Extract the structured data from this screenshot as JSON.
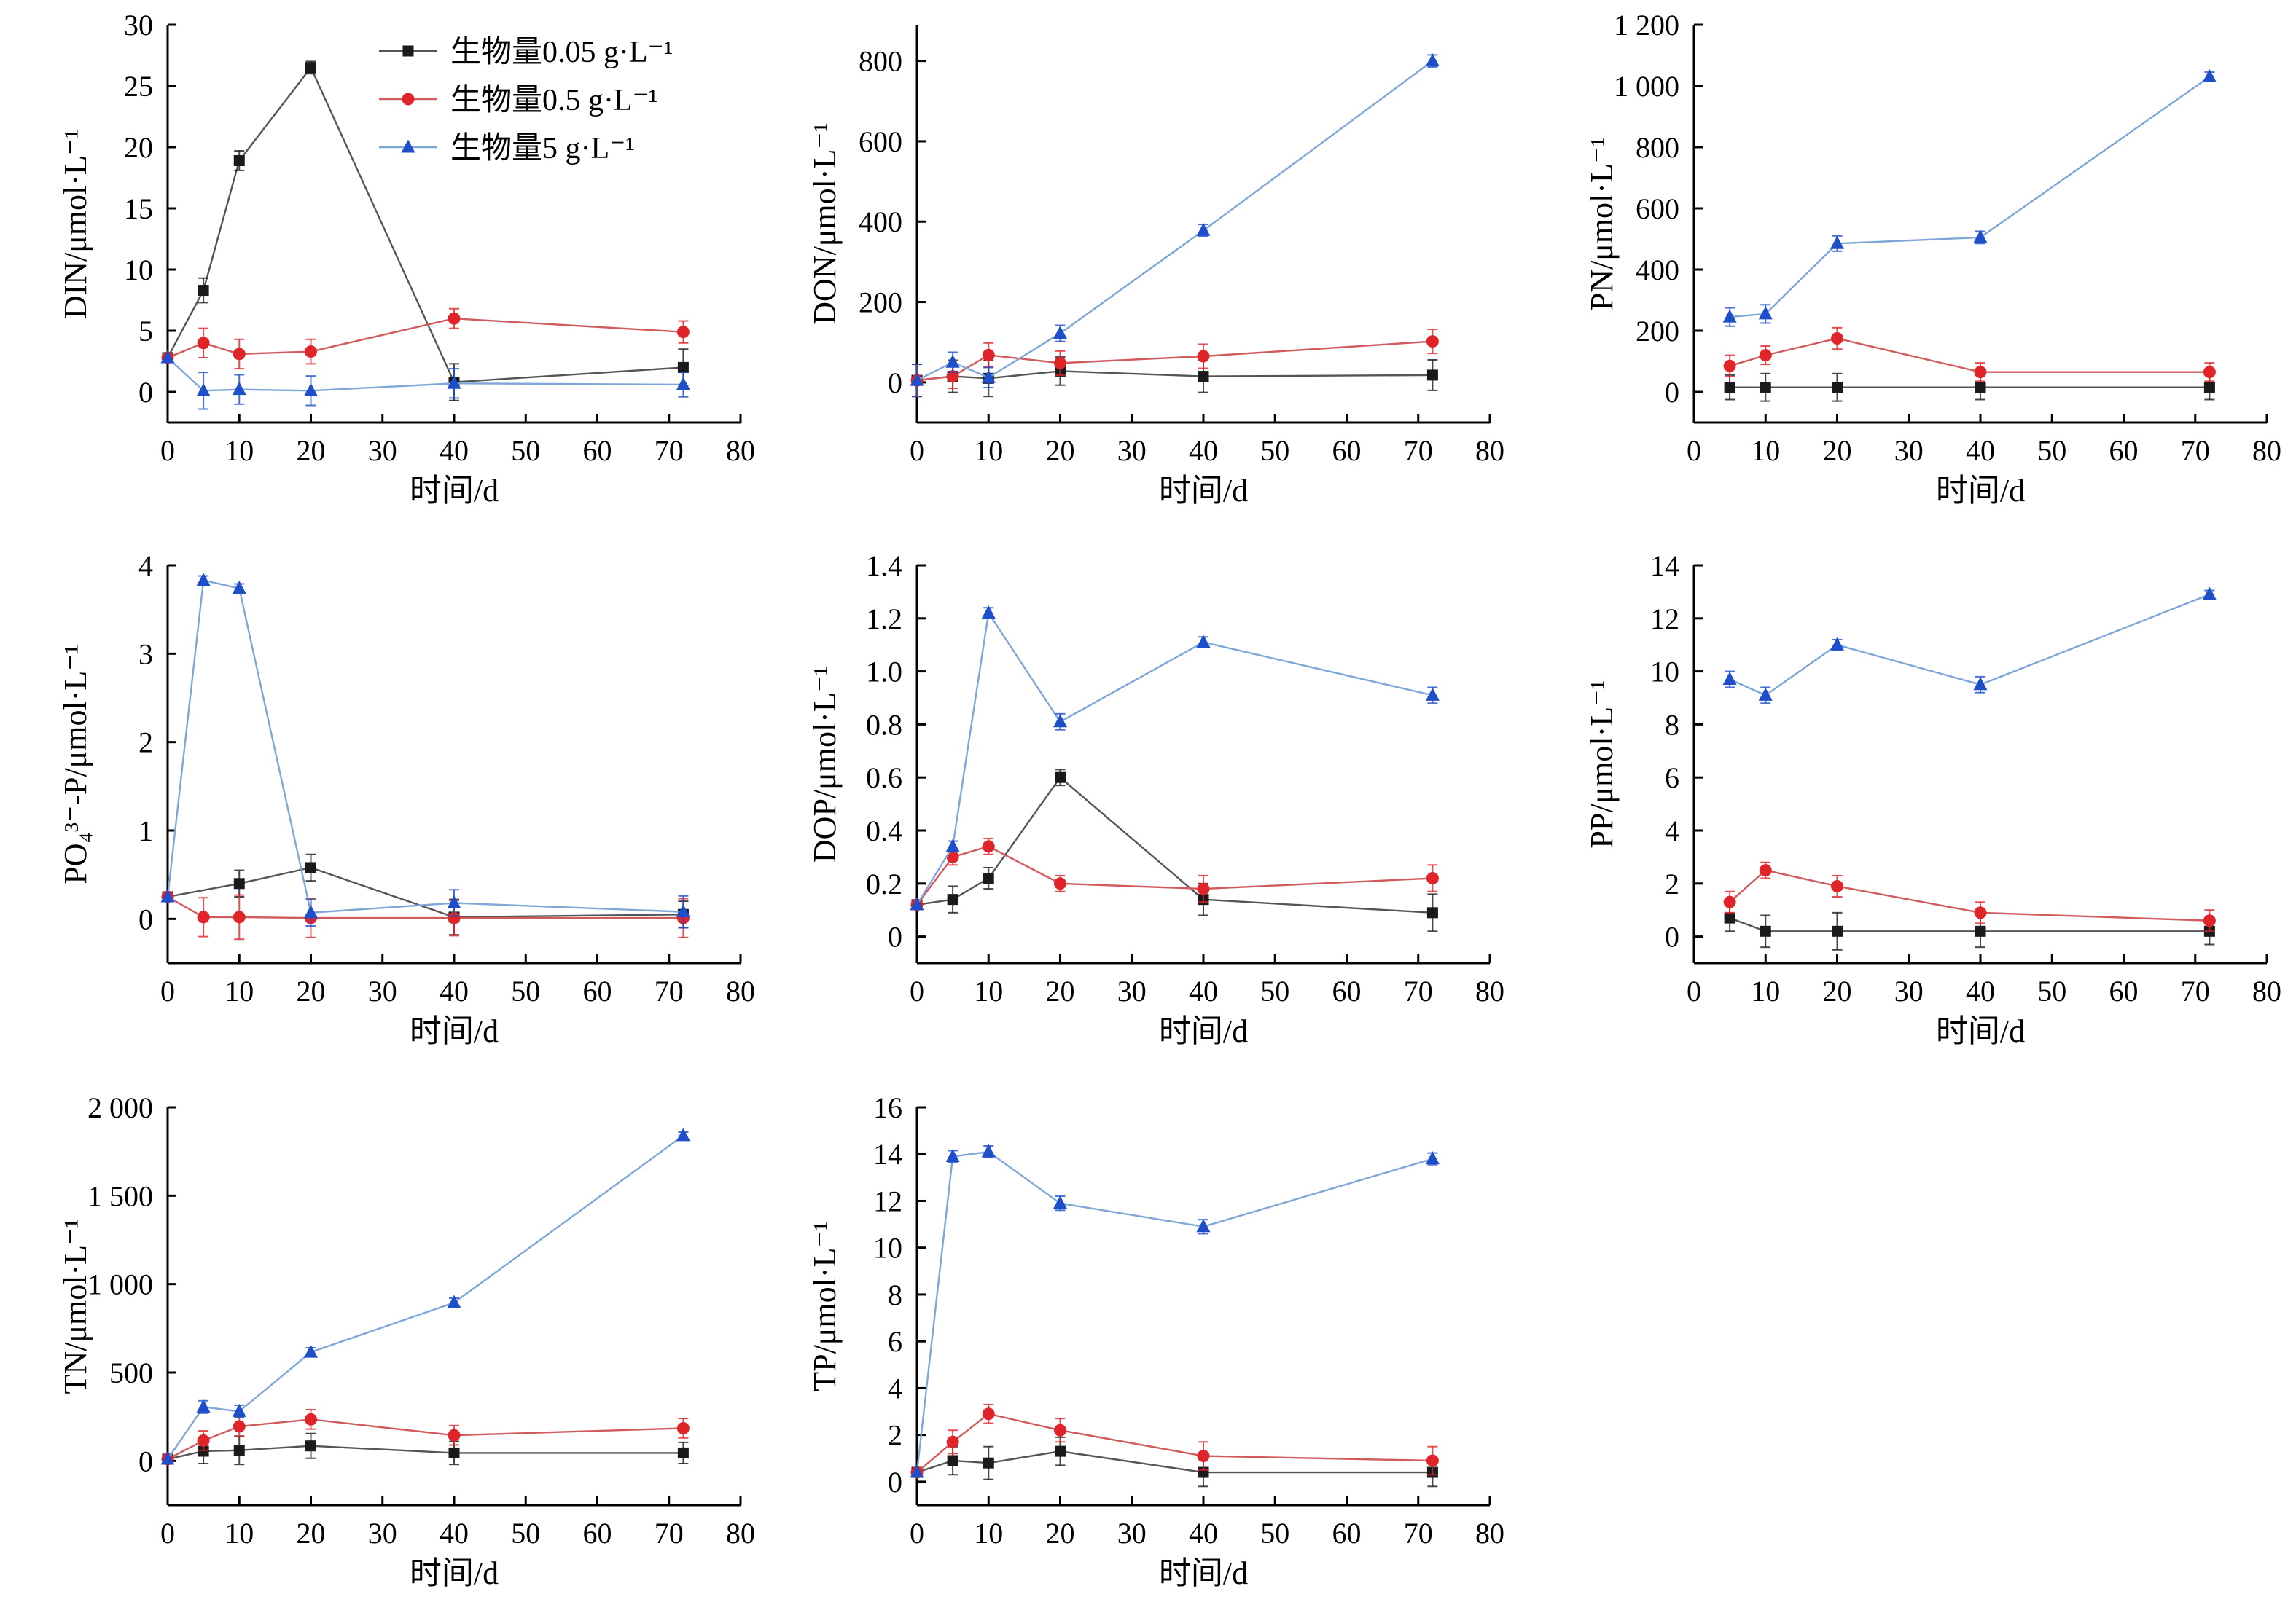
{
  "legend": {
    "items": [
      {
        "label": "生物量0.05 g·L⁻¹",
        "color": "#1a1a1a",
        "marker": "square"
      },
      {
        "label": "生物量0.5 g·L⁻¹",
        "color": "#e0252a",
        "marker": "circle"
      },
      {
        "label": "生物量5 g·L⁻¹",
        "color": "#1f4fc8",
        "marker": "triangle"
      }
    ]
  },
  "chart_data": [
    {
      "type": "line",
      "xlabel": "时间/d",
      "ylabel": "DIN/μmol·L⁻¹",
      "xlim": [
        0,
        80
      ],
      "ylim": [
        -2.5,
        30
      ],
      "xticks": [
        "0",
        "10",
        "20",
        "30",
        "40",
        "50",
        "60",
        "70",
        "80"
      ],
      "yticks": [
        {
          "v": 0,
          "t": "0"
        },
        {
          "v": 5,
          "t": "5"
        },
        {
          "v": 10,
          "t": "10"
        },
        {
          "v": 15,
          "t": "15"
        },
        {
          "v": 20,
          "t": "20"
        },
        {
          "v": 25,
          "t": "25"
        },
        {
          "v": 30,
          "t": "30"
        }
      ],
      "series": [
        {
          "name": "生物量0.05 g·L⁻¹",
          "x": [
            0,
            5,
            10,
            20,
            40,
            72
          ],
          "y": [
            2.8,
            8.3,
            18.9,
            26.5,
            0.8,
            2.0
          ],
          "err": [
            0,
            1,
            0.8,
            0.5,
            1.5,
            1.5
          ]
        },
        {
          "name": "生物量0.5 g·L⁻¹",
          "x": [
            0,
            5,
            10,
            20,
            40,
            72
          ],
          "y": [
            2.8,
            4.0,
            3.1,
            3.3,
            6.0,
            4.9
          ],
          "err": [
            0,
            1.2,
            1.2,
            1.0,
            0.8,
            0.9
          ]
        },
        {
          "name": "生物量5 g·L⁻¹",
          "x": [
            0,
            5,
            10,
            20,
            40,
            72
          ],
          "y": [
            2.8,
            0.1,
            0.2,
            0.1,
            0.7,
            0.6
          ],
          "err": [
            0,
            1.5,
            1.2,
            1.2,
            1.2,
            1.0
          ]
        }
      ]
    },
    {
      "type": "line",
      "xlabel": "时间/d",
      "ylabel": "DON/μmol·L⁻¹",
      "xlim": [
        0,
        80
      ],
      "ylim": [
        -100,
        890
      ],
      "xticks": [
        "0",
        "10",
        "20",
        "30",
        "40",
        "50",
        "60",
        "70",
        "80"
      ],
      "yticks": [
        {
          "v": 0,
          "t": "0"
        },
        {
          "v": 200,
          "t": "200"
        },
        {
          "v": 400,
          "t": "400"
        },
        {
          "v": 600,
          "t": "600"
        },
        {
          "v": 800,
          "t": "800"
        }
      ],
      "series": [
        {
          "name": "生物量0.05 g·L⁻¹",
          "x": [
            0,
            5,
            10,
            20,
            40,
            72
          ],
          "y": [
            5,
            15,
            10,
            28,
            15,
            18
          ],
          "err": [
            40,
            40,
            45,
            35,
            40,
            38
          ]
        },
        {
          "name": "生物量0.5 g·L⁻¹",
          "x": [
            0,
            5,
            10,
            20,
            40,
            72
          ],
          "y": [
            5,
            15,
            68,
            48,
            65,
            102
          ],
          "err": [
            40,
            30,
            30,
            30,
            30,
            30
          ]
        },
        {
          "name": "生物量5 g·L⁻¹",
          "x": [
            0,
            5,
            10,
            20,
            40,
            72
          ],
          "y": [
            5,
            50,
            12,
            122,
            378,
            800
          ],
          "err": [
            40,
            25,
            25,
            20,
            15,
            15
          ]
        }
      ]
    },
    {
      "type": "line",
      "xlabel": "时间/d",
      "ylabel": "PN/μmol·L⁻¹",
      "xlim": [
        0,
        80
      ],
      "ylim": [
        -100,
        1200
      ],
      "xticks": [
        "0",
        "10",
        "20",
        "30",
        "40",
        "50",
        "60",
        "70",
        "80"
      ],
      "yticks": [
        {
          "v": 0,
          "t": "0"
        },
        {
          "v": 200,
          "t": "200"
        },
        {
          "v": 400,
          "t": "400"
        },
        {
          "v": 600,
          "t": "600"
        },
        {
          "v": 800,
          "t": "800"
        },
        {
          "v": 1000,
          "t": "1 000"
        },
        {
          "v": 1200,
          "t": "1 200"
        }
      ],
      "series": [
        {
          "name": "生物量0.05 g·L⁻¹",
          "x": [
            5,
            10,
            20,
            40,
            72
          ],
          "y": [
            15,
            15,
            15,
            15,
            15
          ],
          "err": [
            40,
            45,
            45,
            40,
            40
          ]
        },
        {
          "name": "生物量0.5 g·L⁻¹",
          "x": [
            5,
            10,
            20,
            40,
            72
          ],
          "y": [
            85,
            120,
            175,
            65,
            65
          ],
          "err": [
            35,
            30,
            35,
            30,
            30
          ]
        },
        {
          "name": "生物量5 g·L⁻¹",
          "x": [
            5,
            10,
            20,
            40,
            72
          ],
          "y": [
            245,
            255,
            485,
            505,
            1030
          ],
          "err": [
            30,
            30,
            25,
            20,
            15
          ]
        }
      ]
    },
    {
      "type": "line",
      "xlabel": "时间/d",
      "ylabel": "PO₄³⁻-P/μmol·L⁻¹",
      "xlim": [
        0,
        80
      ],
      "ylim": [
        -0.5,
        4
      ],
      "xticks": [
        "0",
        "10",
        "20",
        "30",
        "40",
        "50",
        "60",
        "70",
        "80"
      ],
      "yticks": [
        {
          "v": 0,
          "t": "0"
        },
        {
          "v": 1,
          "t": "1"
        },
        {
          "v": 2,
          "t": "2"
        },
        {
          "v": 3,
          "t": "3"
        },
        {
          "v": 4,
          "t": "4"
        }
      ],
      "series": [
        {
          "name": "生物量0.05 g·L⁻¹",
          "x": [
            0,
            10,
            20,
            40,
            72
          ],
          "y": [
            0.25,
            0.4,
            0.58,
            0.02,
            0.05
          ],
          "err": [
            0,
            0.15,
            0.15,
            0.2,
            0.15
          ]
        },
        {
          "name": "生物量0.5 g·L⁻¹",
          "x": [
            0,
            5,
            10,
            20,
            40,
            72
          ],
          "y": [
            0.25,
            0.02,
            0.02,
            0.01,
            0.01,
            0.01
          ],
          "err": [
            0,
            0.22,
            0.25,
            0.22,
            0.2,
            0.22
          ]
        },
        {
          "name": "生物量5 g·L⁻¹",
          "x": [
            0,
            5,
            10,
            20,
            40,
            72
          ],
          "y": [
            0.25,
            3.83,
            3.74,
            0.07,
            0.18,
            0.08
          ],
          "err": [
            0,
            0.05,
            0.05,
            0.15,
            0.15,
            0.18
          ]
        }
      ]
    },
    {
      "type": "line",
      "xlabel": "时间/d",
      "ylabel": "DOP/μmol·L⁻¹",
      "xlim": [
        0,
        80
      ],
      "ylim": [
        -0.1,
        1.4
      ],
      "xticks": [
        "0",
        "10",
        "20",
        "30",
        "40",
        "50",
        "60",
        "70",
        "80"
      ],
      "yticks": [
        {
          "v": 0,
          "t": "0"
        },
        {
          "v": 0.2,
          "t": "0.2"
        },
        {
          "v": 0.4,
          "t": "0.4"
        },
        {
          "v": 0.6,
          "t": "0.6"
        },
        {
          "v": 0.8,
          "t": "0.8"
        },
        {
          "v": 1.0,
          "t": "1.0"
        },
        {
          "v": 1.2,
          "t": "1.2"
        },
        {
          "v": 1.4,
          "t": "1.4"
        }
      ],
      "series": [
        {
          "name": "生物量0.05 g·L⁻¹",
          "x": [
            0,
            5,
            10,
            20,
            40,
            72
          ],
          "y": [
            0.12,
            0.14,
            0.22,
            0.6,
            0.14,
            0.09
          ],
          "err": [
            0,
            0.05,
            0.04,
            0.03,
            0.06,
            0.07
          ]
        },
        {
          "name": "生物量0.5 g·L⁻¹",
          "x": [
            0,
            5,
            10,
            20,
            40,
            72
          ],
          "y": [
            0.12,
            0.3,
            0.34,
            0.2,
            0.18,
            0.22
          ],
          "err": [
            0,
            0.03,
            0.03,
            0.03,
            0.05,
            0.05
          ]
        },
        {
          "name": "生物量5 g·L⁻¹",
          "x": [
            0,
            5,
            10,
            20,
            40,
            72
          ],
          "y": [
            0.12,
            0.34,
            1.22,
            0.81,
            1.11,
            0.91
          ],
          "err": [
            0,
            0.02,
            0.02,
            0.03,
            0.02,
            0.03
          ]
        }
      ]
    },
    {
      "type": "line",
      "xlabel": "时间/d",
      "ylabel": "PP/μmol·L⁻¹",
      "xlim": [
        0,
        80
      ],
      "ylim": [
        -1,
        14
      ],
      "xticks": [
        "0",
        "10",
        "20",
        "30",
        "40",
        "50",
        "60",
        "70",
        "80"
      ],
      "yticks": [
        {
          "v": 0,
          "t": "0"
        },
        {
          "v": 2,
          "t": "2"
        },
        {
          "v": 4,
          "t": "4"
        },
        {
          "v": 6,
          "t": "6"
        },
        {
          "v": 8,
          "t": "8"
        },
        {
          "v": 10,
          "t": "10"
        },
        {
          "v": 12,
          "t": "12"
        },
        {
          "v": 14,
          "t": "14"
        }
      ],
      "series": [
        {
          "name": "生物量0.05 g·L⁻¹",
          "x": [
            5,
            10,
            20,
            40,
            72
          ],
          "y": [
            0.7,
            0.2,
            0.2,
            0.2,
            0.2
          ],
          "err": [
            0.5,
            0.6,
            0.7,
            0.6,
            0.5
          ]
        },
        {
          "name": "生物量0.5 g·L⁻¹",
          "x": [
            5,
            10,
            20,
            40,
            72
          ],
          "y": [
            1.3,
            2.5,
            1.9,
            0.9,
            0.6
          ],
          "err": [
            0.4,
            0.3,
            0.4,
            0.4,
            0.4
          ]
        },
        {
          "name": "生物量5 g·L⁻¹",
          "x": [
            5,
            10,
            20,
            40,
            72
          ],
          "y": [
            9.7,
            9.1,
            11.0,
            9.5,
            12.9
          ],
          "err": [
            0.3,
            0.3,
            0.2,
            0.3,
            0.15
          ]
        }
      ]
    },
    {
      "type": "line",
      "xlabel": "时间/d",
      "ylabel": "TN/μmol·L⁻¹",
      "xlim": [
        0,
        80
      ],
      "ylim": [
        -250,
        2000
      ],
      "xticks": [
        "0",
        "10",
        "20",
        "30",
        "40",
        "50",
        "60",
        "70",
        "80"
      ],
      "yticks": [
        {
          "v": 0,
          "t": "0"
        },
        {
          "v": 500,
          "t": "500"
        },
        {
          "v": 1000,
          "t": "1 000"
        },
        {
          "v": 1500,
          "t": "1 500"
        },
        {
          "v": 2000,
          "t": "2 000"
        }
      ],
      "series": [
        {
          "name": "生物量0.05 g·L⁻¹",
          "x": [
            0,
            5,
            10,
            20,
            40,
            72
          ],
          "y": [
            10,
            55,
            60,
            85,
            45,
            45
          ],
          "err": [
            0,
            70,
            80,
            70,
            65,
            60
          ]
        },
        {
          "name": "生物量0.5 g·L⁻¹",
          "x": [
            0,
            5,
            10,
            20,
            40,
            72
          ],
          "y": [
            10,
            115,
            195,
            235,
            145,
            185
          ],
          "err": [
            0,
            55,
            55,
            55,
            55,
            55
          ]
        },
        {
          "name": "生物量5 g·L⁻¹",
          "x": [
            0,
            5,
            10,
            20,
            40,
            72
          ],
          "y": [
            10,
            305,
            280,
            615,
            895,
            1840
          ],
          "err": [
            0,
            35,
            35,
            25,
            25,
            20
          ]
        }
      ]
    },
    {
      "type": "line",
      "xlabel": "时间/d",
      "ylabel": "TP/μmol·L⁻¹",
      "xlim": [
        0,
        80
      ],
      "ylim": [
        -1,
        16
      ],
      "xticks": [
        "0",
        "10",
        "20",
        "30",
        "40",
        "50",
        "60",
        "70",
        "80"
      ],
      "yticks": [
        {
          "v": 0,
          "t": "0"
        },
        {
          "v": 2,
          "t": "2"
        },
        {
          "v": 4,
          "t": "4"
        },
        {
          "v": 6,
          "t": "6"
        },
        {
          "v": 8,
          "t": "8"
        },
        {
          "v": 10,
          "t": "10"
        },
        {
          "v": 12,
          "t": "12"
        },
        {
          "v": 14,
          "t": "14"
        },
        {
          "v": 16,
          "t": "16"
        }
      ],
      "series": [
        {
          "name": "生物量0.05 g·L⁻¹",
          "x": [
            0,
            5,
            10,
            20,
            40,
            72
          ],
          "y": [
            0.4,
            0.9,
            0.8,
            1.3,
            0.4,
            0.4
          ],
          "err": [
            0,
            0.6,
            0.7,
            0.6,
            0.6,
            0.6
          ]
        },
        {
          "name": "生物量0.5 g·L⁻¹",
          "x": [
            0,
            5,
            10,
            20,
            40,
            72
          ],
          "y": [
            0.4,
            1.7,
            2.9,
            2.2,
            1.1,
            0.9
          ],
          "err": [
            0,
            0.5,
            0.4,
            0.5,
            0.6,
            0.6
          ]
        },
        {
          "name": "生物量5 g·L⁻¹",
          "x": [
            0,
            5,
            10,
            20,
            40,
            72
          ],
          "y": [
            0.4,
            13.9,
            14.1,
            11.9,
            10.9,
            13.8
          ],
          "err": [
            0,
            0.25,
            0.25,
            0.3,
            0.3,
            0.25
          ]
        }
      ]
    }
  ]
}
